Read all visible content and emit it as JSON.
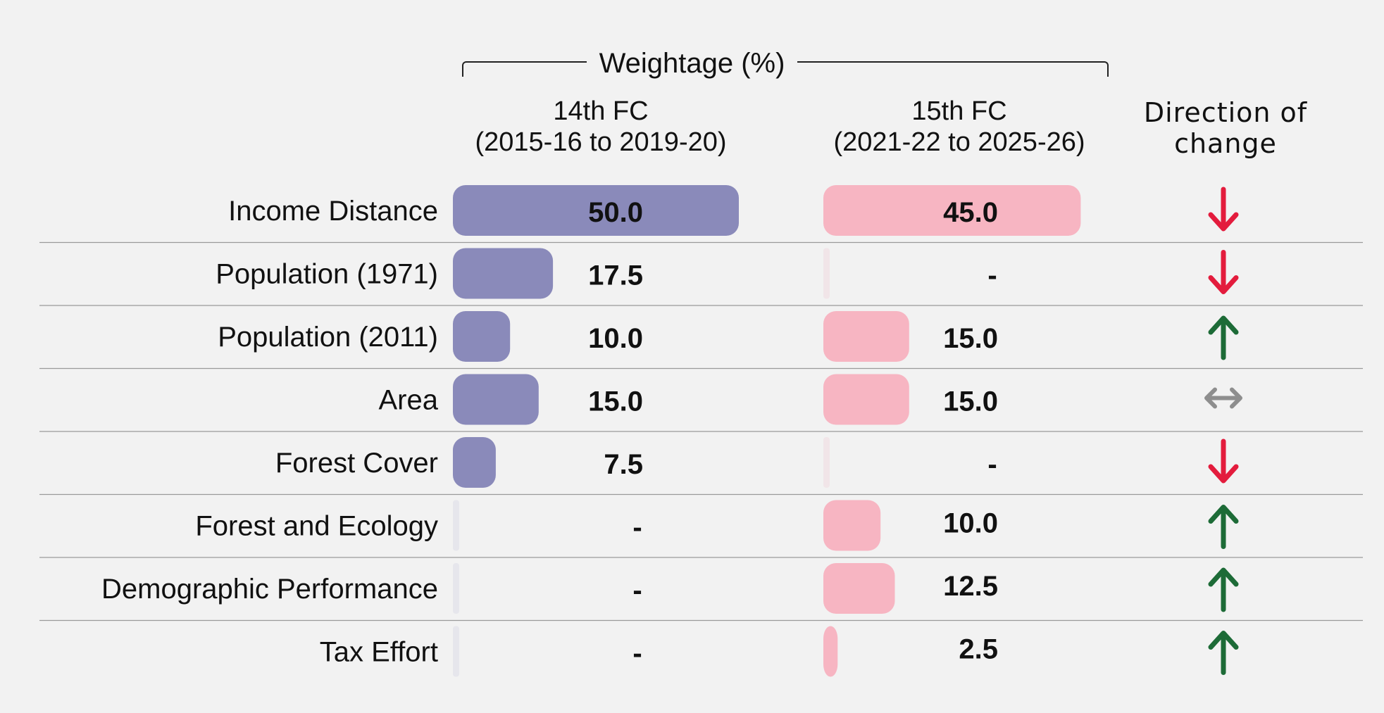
{
  "header": {
    "group_title": "Weightage (%)",
    "col1_line1": "14th FC",
    "col1_line2": "(2015-16 to 2019-20)",
    "col2_line1": "15th FC",
    "col2_line2": "(2021-22 to 2025-26)",
    "dir_line1": "Direction of",
    "dir_line2": "change"
  },
  "colors": {
    "series_14": "#8a8aba",
    "series_15": "#f7b5c2",
    "empty_14": "#e6e6ec",
    "empty_15": "#f1e5e8",
    "down": "#e31c3d",
    "up": "#1d6b37",
    "same": "#8e8e8e",
    "divider": "#9a9a9a"
  },
  "chart_data": {
    "type": "table",
    "max_value": 50,
    "series": [
      {
        "name": "14th FC (2015-16 to 2019-20)",
        "values": [
          50.0,
          17.5,
          10.0,
          15.0,
          7.5,
          null,
          null,
          null
        ]
      },
      {
        "name": "15th FC (2021-22 to 2025-26)",
        "values": [
          45.0,
          null,
          15.0,
          15.0,
          null,
          10.0,
          12.5,
          2.5
        ]
      }
    ],
    "rows": [
      {
        "label": "Income Distance",
        "v14": 50.0,
        "t14": "50.0",
        "v15": 45.0,
        "t15": "45.0",
        "direction": "down"
      },
      {
        "label": "Population (1971)",
        "v14": 17.5,
        "t14": "17.5",
        "v15": 0,
        "t15": "-",
        "direction": "down"
      },
      {
        "label": "Population (2011)",
        "v14": 10.0,
        "t14": "10.0",
        "v15": 15.0,
        "t15": "15.0",
        "direction": "up"
      },
      {
        "label": "Area",
        "v14": 15.0,
        "t14": "15.0",
        "v15": 15.0,
        "t15": "15.0",
        "direction": "same"
      },
      {
        "label": "Forest Cover",
        "v14": 7.5,
        "t14": "7.5",
        "v15": 0,
        "t15": "-",
        "direction": "down"
      },
      {
        "label": "Forest and Ecology",
        "v14": 0,
        "t14": "-",
        "v15": 10.0,
        "t15": "10.0",
        "direction": "up"
      },
      {
        "label": "Demographic Performance",
        "v14": 0,
        "t14": "-",
        "v15": 12.5,
        "t15": "12.5",
        "direction": "up"
      },
      {
        "label": "Tax Effort",
        "v14": 0,
        "t14": "-",
        "v15": 2.5,
        "t15": "2.5",
        "direction": "up"
      }
    ]
  }
}
